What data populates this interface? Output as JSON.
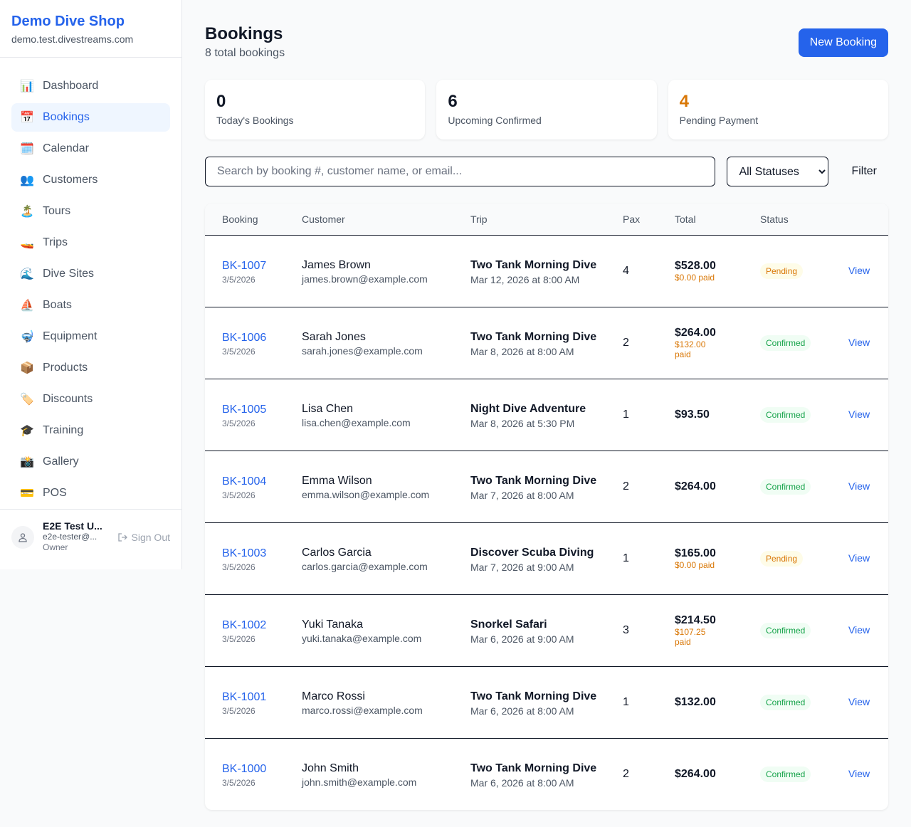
{
  "sidebar": {
    "brand": "Demo Dive Shop",
    "domain": "demo.test.divestreams.com",
    "items": [
      {
        "label": "Dashboard",
        "icon": "📊",
        "active": false
      },
      {
        "label": "Bookings",
        "icon": "📅",
        "active": true
      },
      {
        "label": "Calendar",
        "icon": "🗓️",
        "active": false
      },
      {
        "label": "Customers",
        "icon": "👥",
        "active": false
      },
      {
        "label": "Tours",
        "icon": "🏝️",
        "active": false
      },
      {
        "label": "Trips",
        "icon": "🚤",
        "active": false
      },
      {
        "label": "Dive Sites",
        "icon": "🌊",
        "active": false
      },
      {
        "label": "Boats",
        "icon": "⛵",
        "active": false
      },
      {
        "label": "Equipment",
        "icon": "🤿",
        "active": false
      },
      {
        "label": "Products",
        "icon": "📦",
        "active": false
      },
      {
        "label": "Discounts",
        "icon": "🏷️",
        "active": false
      },
      {
        "label": "Training",
        "icon": "🎓",
        "active": false
      },
      {
        "label": "Gallery",
        "icon": "📸",
        "active": false
      },
      {
        "label": "POS",
        "icon": "💳",
        "active": false
      }
    ],
    "user": {
      "name": "E2E Test U...",
      "email": "e2e-tester@...",
      "role": "Owner",
      "sign_out": "Sign Out"
    }
  },
  "header": {
    "title": "Bookings",
    "subtitle": "8 total bookings",
    "new_button": "New Booking"
  },
  "stats": [
    {
      "value": "0",
      "label": "Today's Bookings",
      "color": "#111827"
    },
    {
      "value": "6",
      "label": "Upcoming Confirmed",
      "color": "#111827"
    },
    {
      "value": "4",
      "label": "Pending Payment",
      "color": "#d97706"
    }
  ],
  "filters": {
    "search_placeholder": "Search by booking #, customer name, or email...",
    "status_selected": "All Statuses",
    "filter_button": "Filter"
  },
  "table": {
    "columns": [
      "Booking",
      "Customer",
      "Trip",
      "Pax",
      "Total",
      "Status",
      ""
    ],
    "rows": [
      {
        "id": "BK-1007",
        "date": "3/5/2026",
        "customer": "James Brown",
        "email": "james.brown@example.com",
        "trip": "Two Tank Morning Dive",
        "trip_date": "Mar 12, 2026 at 8:00 AM",
        "pax": "4",
        "total": "$528.00",
        "paid": "$0.00 paid",
        "status": "Pending",
        "action": "View"
      },
      {
        "id": "BK-1006",
        "date": "3/5/2026",
        "customer": "Sarah Jones",
        "email": "sarah.jones@example.com",
        "trip": "Two Tank Morning Dive",
        "trip_date": "Mar 8, 2026 at 8:00 AM",
        "pax": "2",
        "total": "$264.00",
        "paid": "$132.00 paid",
        "status": "Confirmed",
        "action": "View"
      },
      {
        "id": "BK-1005",
        "date": "3/5/2026",
        "customer": "Lisa Chen",
        "email": "lisa.chen@example.com",
        "trip": "Night Dive Adventure",
        "trip_date": "Mar 8, 2026 at 5:30 PM",
        "pax": "1",
        "total": "$93.50",
        "paid": "",
        "status": "Confirmed",
        "action": "View"
      },
      {
        "id": "BK-1004",
        "date": "3/5/2026",
        "customer": "Emma Wilson",
        "email": "emma.wilson@example.com",
        "trip": "Two Tank Morning Dive",
        "trip_date": "Mar 7, 2026 at 8:00 AM",
        "pax": "2",
        "total": "$264.00",
        "paid": "",
        "status": "Confirmed",
        "action": "View"
      },
      {
        "id": "BK-1003",
        "date": "3/5/2026",
        "customer": "Carlos Garcia",
        "email": "carlos.garcia@example.com",
        "trip": "Discover Scuba Diving",
        "trip_date": "Mar 7, 2026 at 9:00 AM",
        "pax": "1",
        "total": "$165.00",
        "paid": "$0.00 paid",
        "status": "Pending",
        "action": "View"
      },
      {
        "id": "BK-1002",
        "date": "3/5/2026",
        "customer": "Yuki Tanaka",
        "email": "yuki.tanaka@example.com",
        "trip": "Snorkel Safari",
        "trip_date": "Mar 6, 2026 at 9:00 AM",
        "pax": "3",
        "total": "$214.50",
        "paid": "$107.25 paid",
        "status": "Confirmed",
        "action": "View"
      },
      {
        "id": "BK-1001",
        "date": "3/5/2026",
        "customer": "Marco Rossi",
        "email": "marco.rossi@example.com",
        "trip": "Two Tank Morning Dive",
        "trip_date": "Mar 6, 2026 at 8:00 AM",
        "pax": "1",
        "total": "$132.00",
        "paid": "",
        "status": "Confirmed",
        "action": "View"
      },
      {
        "id": "BK-1000",
        "date": "3/5/2026",
        "customer": "John Smith",
        "email": "john.smith@example.com",
        "trip": "Two Tank Morning Dive",
        "trip_date": "Mar 6, 2026 at 8:00 AM",
        "pax": "2",
        "total": "$264.00",
        "paid": "",
        "status": "Confirmed",
        "action": "View"
      }
    ]
  },
  "status_colors": {
    "Pending": {
      "bg": "#fefce8",
      "fg": "#d97706"
    },
    "Confirmed": {
      "bg": "#f0fdf4",
      "fg": "#16a34a"
    }
  }
}
